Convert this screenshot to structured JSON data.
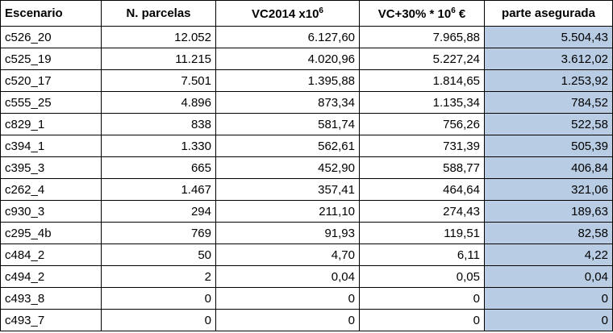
{
  "table": {
    "header": [
      {
        "text": "Escenario"
      },
      {
        "text": "N. parcelas"
      },
      {
        "text": "VC2014 x10",
        "sup": "6"
      },
      {
        "text": "VC+30% * 10",
        "sup": "6",
        "after": " €"
      },
      {
        "text": "parte asegurada"
      }
    ],
    "rows": [
      [
        "c526_20",
        "12.052",
        "6.127,60",
        "7.965,88",
        "5.504,43"
      ],
      [
        "c525_19",
        "11.215",
        "4.020,96",
        "5.227,24",
        "3.612,02"
      ],
      [
        "c520_17",
        "7.501",
        "1.395,88",
        "1.814,65",
        "1.253,92"
      ],
      [
        "c555_25",
        "4.896",
        "873,34",
        "1.135,34",
        "784,52"
      ],
      [
        "c829_1",
        "838",
        "581,74",
        "756,26",
        "522,58"
      ],
      [
        "c394_1",
        "1.330",
        "562,61",
        "731,39",
        "505,39"
      ],
      [
        "c395_3",
        "665",
        "452,90",
        "588,77",
        "406,84"
      ],
      [
        "c262_4",
        "1.467",
        "357,41",
        "464,64",
        "321,06"
      ],
      [
        "c930_3",
        "294",
        "211,10",
        "274,43",
        "189,63"
      ],
      [
        "c295_4b",
        "769",
        "91,93",
        "119,51",
        "82,58"
      ],
      [
        "c484_2",
        "50",
        "4,70",
        "6,11",
        "4,22"
      ],
      [
        "c494_2",
        "2",
        "0,04",
        "0,05",
        "0,04"
      ],
      [
        "c493_8",
        "0",
        "0",
        "0",
        "0"
      ],
      [
        "c493_7",
        "0",
        "0",
        "0",
        "0"
      ]
    ]
  }
}
